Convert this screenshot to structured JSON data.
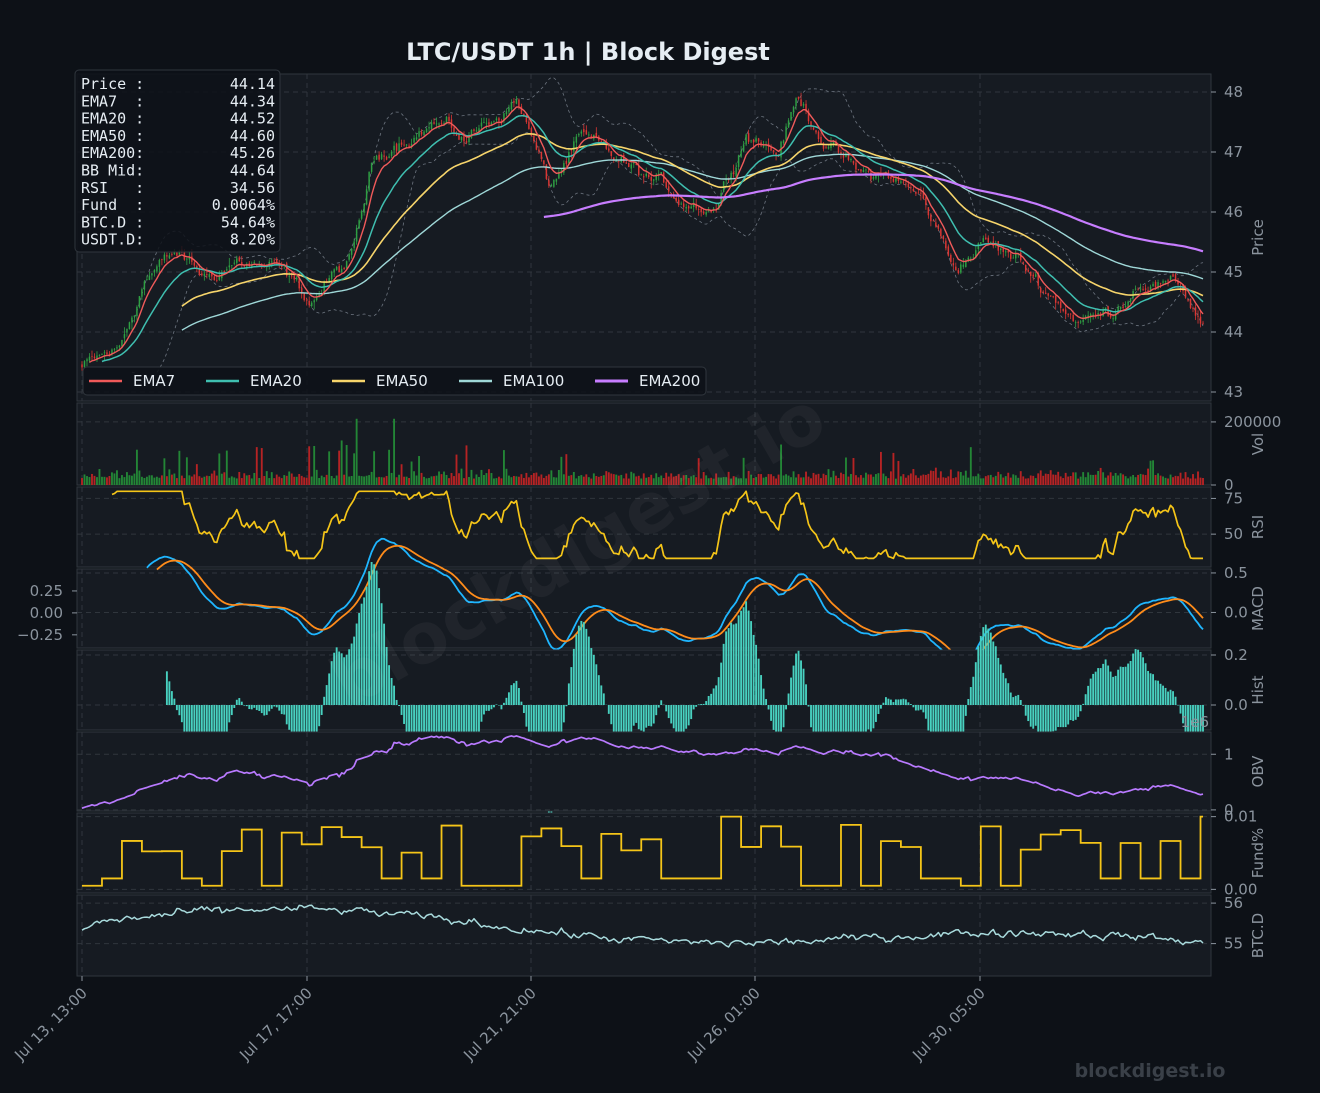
{
  "chart_data": {
    "type": "line",
    "title": "LTC/USDT  1h  |  Block Digest",
    "x_tick_labels": [
      "Jul 13, 13:00",
      "Jul 17, 17:00",
      "Jul 21, 21:00",
      "Jul 26, 01:00",
      "Jul 30, 05:00"
    ],
    "info_box": [
      {
        "label": "Price :",
        "value": "44.14"
      },
      {
        "label": "EMA7  :",
        "value": "44.34"
      },
      {
        "label": "EMA20 :",
        "value": "44.52"
      },
      {
        "label": "EMA50 :",
        "value": "44.60"
      },
      {
        "label": "EMA200:",
        "value": "45.26"
      },
      {
        "label": "BB Mid:",
        "value": "44.64"
      },
      {
        "label": "RSI   :",
        "value": "34.56"
      },
      {
        "label": "Fund  :",
        "value": "0.0064%"
      },
      {
        "label": "BTC.D :",
        "value": "54.64%"
      },
      {
        "label": "USDT.D:",
        "value": "8.20%"
      }
    ],
    "legend": [
      {
        "name": "EMA7",
        "color": "#f05a5a"
      },
      {
        "name": "EMA20",
        "color": "#3fbfb0"
      },
      {
        "name": "EMA50",
        "color": "#f7d56b"
      },
      {
        "name": "EMA100",
        "color": "#9fd8d8"
      },
      {
        "name": "EMA200",
        "color": "#c77dff"
      }
    ],
    "panels": [
      {
        "key": "price",
        "ylabel": "Price",
        "ylim": [
          42.85,
          48.3
        ],
        "ticks": [
          "43",
          "44",
          "45",
          "46",
          "47",
          "48"
        ],
        "tick_values": [
          43,
          44,
          45,
          46,
          47,
          48
        ]
      },
      {
        "key": "vol",
        "ylabel": "Vol",
        "ylim": [
          0,
          260000
        ],
        "ticks": [
          "0",
          "200000"
        ],
        "tick_values": [
          0,
          200000
        ]
      },
      {
        "key": "rsi",
        "ylabel": "RSI",
        "ylim": [
          27,
          83
        ],
        "ticks": [
          "50",
          "75"
        ],
        "tick_values": [
          50,
          75
        ]
      },
      {
        "key": "macd",
        "ylabel": "MACD",
        "ylim": [
          -0.45,
          0.55
        ],
        "ticks": [
          "0.0",
          "0.5"
        ],
        "tick_values": [
          0,
          0.5
        ],
        "left_ticks": [
          "0.25",
          "0.00",
          "−0.25"
        ],
        "left_tick_values": [
          0.25,
          0,
          -0.25
        ],
        "left_ylim": [
          -0.4,
          0.5
        ]
      },
      {
        "key": "hist",
        "ylabel": "Hist",
        "ylim": [
          -0.1,
          0.22
        ],
        "ticks": [
          "0.0",
          "0.2"
        ],
        "tick_values": [
          0,
          0.2
        ]
      },
      {
        "key": "obv",
        "ylabel": "OBV",
        "ylim": [
          -0.02,
          1.4
        ],
        "ticks": [
          "0",
          "1"
        ],
        "tick_values": [
          0,
          1
        ],
        "offset_label": "1e6"
      },
      {
        "key": "fund",
        "ylabel": "Fund%",
        "ylim": [
          -0.0005,
          0.0105
        ],
        "ticks": [
          "0.00",
          "0.01"
        ],
        "tick_values": [
          0,
          0.01
        ]
      },
      {
        "key": "btcd",
        "ylabel": "BTC.D",
        "ylim": [
          54.2,
          56.2
        ],
        "ticks": [
          "55",
          "56"
        ],
        "tick_values": [
          55,
          56
        ]
      }
    ],
    "series_colors": {
      "ema7": "#f05a5a",
      "ema20": "#3fbfb0",
      "ema50": "#f7d56b",
      "ema100": "#9fd8d8",
      "ema200": "#c77dff",
      "bb": "#6e7681",
      "candle_up": "#2ea043",
      "candle_down": "#da3633",
      "vol_up": "#238636",
      "vol_down": "#b62324",
      "rsi": "#f5c518",
      "macd": "#1fb6ff",
      "signal": "#ff8c1a",
      "hist": "#48d1c0",
      "obv": "#b97aff",
      "fund": "#f5c518",
      "btcd": "#a8dadc"
    },
    "points_per_series": 450,
    "close_anchors_price": [
      [
        0,
        43.4
      ],
      [
        18,
        43.7
      ],
      [
        30,
        44.9
      ],
      [
        45,
        45.3
      ],
      [
        60,
        44.9
      ],
      [
        75,
        45.2
      ],
      [
        95,
        45.0
      ],
      [
        110,
        44.5
      ],
      [
        120,
        44.9
      ],
      [
        130,
        45.2
      ],
      [
        140,
        46.8
      ],
      [
        150,
        47.2
      ],
      [
        170,
        47.5
      ],
      [
        185,
        47.2
      ],
      [
        195,
        47.5
      ],
      [
        210,
        47.9
      ],
      [
        225,
        46.4
      ],
      [
        240,
        47.2
      ],
      [
        255,
        46.9
      ],
      [
        265,
        46.7
      ],
      [
        275,
        46.5
      ],
      [
        290,
        46.2
      ],
      [
        305,
        46.1
      ],
      [
        320,
        47.4
      ],
      [
        335,
        47.0
      ],
      [
        345,
        47.9
      ],
      [
        360,
        47.1
      ],
      [
        375,
        46.6
      ],
      [
        390,
        46.6
      ],
      [
        405,
        46.2
      ],
      [
        420,
        45.1
      ],
      [
        435,
        45.5
      ],
      [
        450,
        45.2
      ],
      [
        465,
        44.7
      ],
      [
        480,
        44.2
      ],
      [
        495,
        44.3
      ],
      [
        510,
        44.9
      ],
      [
        530,
        44.7
      ],
      [
        540,
        44.14
      ]
    ],
    "last_close": 44.14
  }
}
